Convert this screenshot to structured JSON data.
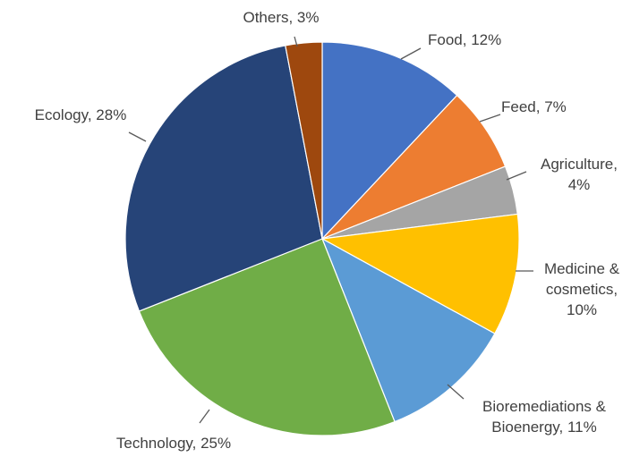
{
  "chart_data": {
    "type": "pie",
    "title": "",
    "start_angle_deg": 0,
    "direction": "clockwise",
    "slices": [
      {
        "label": "Food",
        "value": 12,
        "color": "#4472C4",
        "text_lines": [
          "Food, 12%"
        ]
      },
      {
        "label": "Feed",
        "value": 7,
        "color": "#ED7D31",
        "text_lines": [
          "Feed, 7%"
        ]
      },
      {
        "label": "Agriculture",
        "value": 4,
        "color": "#A5A5A5",
        "text_lines": [
          "Agriculture,",
          "4%"
        ]
      },
      {
        "label": "Medicine & cosmetics",
        "value": 10,
        "color": "#FFC000",
        "text_lines": [
          "Medicine &",
          "cosmetics,",
          "10%"
        ]
      },
      {
        "label": "Bioremediations & Bioenergy",
        "value": 11,
        "color": "#5B9BD5",
        "text_lines": [
          "Bioremediations &",
          "Bioenergy, 11%"
        ]
      },
      {
        "label": "Technology",
        "value": 25,
        "color": "#70AD47",
        "text_lines": [
          "Technology, 25%"
        ]
      },
      {
        "label": "Ecology",
        "value": 28,
        "color": "#264478",
        "text_lines": [
          "Ecology, 28%"
        ]
      },
      {
        "label": "Others",
        "value": 3,
        "color": "#9E480E",
        "text_lines": [
          "Others, 3%"
        ]
      }
    ]
  }
}
